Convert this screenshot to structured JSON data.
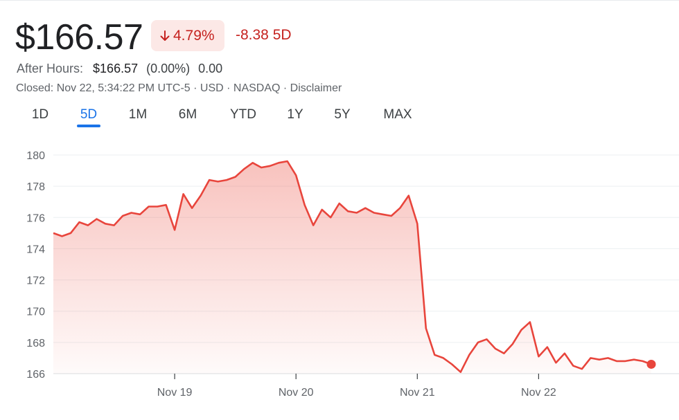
{
  "header": {
    "price": "$166.57",
    "change_pct": "4.79%",
    "change_abs": "-8.38 5D",
    "after_hours_label": "After Hours:",
    "after_hours_price": "$166.57",
    "after_hours_pct": "(0.00%)",
    "after_hours_change": "0.00",
    "closed_line": "Closed: Nov 22, 5:34:22 PM UTC-5 · USD · NASDAQ · Disclaimer"
  },
  "colors": {
    "negative": "#c5221f",
    "negative_bg": "#fce8e6",
    "line": "#e8453c",
    "accent": "#1a73e8"
  },
  "icons": {
    "change_direction": "arrow-down-icon"
  },
  "tabs": [
    {
      "label": "1D"
    },
    {
      "label": "5D",
      "active": true
    },
    {
      "label": "1M"
    },
    {
      "label": "6M"
    },
    {
      "label": "YTD"
    },
    {
      "label": "1Y"
    },
    {
      "label": "5Y"
    },
    {
      "label": "MAX"
    }
  ],
  "chart_data": {
    "type": "area",
    "ylim": [
      165.5,
      180.5
    ],
    "y_ticks": [
      166,
      168,
      170,
      172,
      174,
      176,
      178,
      180
    ],
    "x_ticks": [
      "Nov 19",
      "Nov 20",
      "Nov 21",
      "Nov 22"
    ],
    "x_tick_positions": [
      7,
      14,
      21,
      28
    ],
    "xlim": [
      0,
      34.5
    ],
    "grid": true,
    "series": [
      {
        "x": [
          0,
          0.5,
          1,
          1.5,
          2,
          2.5,
          3,
          3.5,
          4,
          4.5,
          5,
          5.5,
          6,
          6.5,
          7,
          7.5,
          8,
          8.5,
          9,
          9.5,
          10,
          10.5,
          11,
          11.5,
          12,
          12.5,
          13,
          13.5,
          14,
          14.5,
          15,
          15.5,
          16,
          16.5,
          17,
          17.5,
          18,
          18.5,
          19,
          19.5,
          20,
          20.5,
          21,
          21.5,
          22,
          22.5,
          23,
          23.5,
          24,
          24.5,
          25,
          25.5,
          26,
          26.5,
          27,
          27.5,
          28,
          28.5,
          29,
          29.5,
          30,
          30.5,
          31,
          31.5,
          32,
          32.5,
          33,
          33.5,
          34,
          34.5
        ],
        "values": [
          175.0,
          174.8,
          175.0,
          175.7,
          175.5,
          175.9,
          175.6,
          175.5,
          176.1,
          176.3,
          176.2,
          176.7,
          176.7,
          176.8,
          175.2,
          177.5,
          176.6,
          177.4,
          178.4,
          178.3,
          178.4,
          178.6,
          179.1,
          179.5,
          179.2,
          179.3,
          179.5,
          179.6,
          178.7,
          176.8,
          175.5,
          176.5,
          176.0,
          176.9,
          176.4,
          176.3,
          176.6,
          176.3,
          176.2,
          176.1,
          176.6,
          177.4,
          175.6,
          168.9,
          167.2,
          167.0,
          166.6,
          166.1,
          167.2,
          168.0,
          168.2,
          167.6,
          167.3,
          167.9,
          168.8,
          169.3,
          167.1,
          167.7,
          166.7,
          167.3,
          166.5,
          166.3,
          167.0,
          166.9,
          167.0,
          166.8,
          166.8,
          166.9,
          166.8,
          166.6
        ]
      }
    ]
  }
}
